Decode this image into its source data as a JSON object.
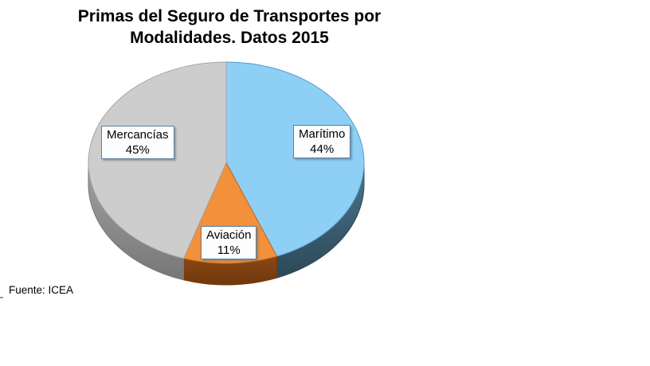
{
  "title": {
    "line1": "Primas del Seguro de Transportes por",
    "line2": "Modalidades. Datos 2015"
  },
  "source_note": "Fuente: ICEA",
  "chart_data": {
    "type": "pie",
    "style": "3d",
    "title": "Primas del Seguro de Transportes por Modalidades. Datos 2015",
    "unit": "%",
    "start_angle_deg": 0,
    "direction": "clockwise",
    "legend": "none",
    "categories": [
      "Marítimo",
      "Aviación",
      "Mercancías"
    ],
    "values": [
      44,
      11,
      45
    ],
    "slices": [
      {
        "label": "Marítimo",
        "value": 44,
        "pct_label": "44%",
        "color": "#8ECFF5",
        "edge_color": "#5A9BCE",
        "side_color_top": "#4C7690",
        "side_color_bottom": "#2C4857"
      },
      {
        "label": "Aviación",
        "value": 11,
        "pct_label": "11%",
        "color": "#F2903C",
        "edge_color": "#C06A1E",
        "side_color_top": "#8A4815",
        "side_color_bottom": "#6F380C"
      },
      {
        "label": "Mercancías",
        "value": 45,
        "pct_label": "45%",
        "color": "#CDCDCD",
        "edge_color": "#A6A6A6",
        "side_color_top": "#A2A2A2",
        "side_color_bottom": "#777777"
      }
    ],
    "source": "Fuente: ICEA"
  }
}
